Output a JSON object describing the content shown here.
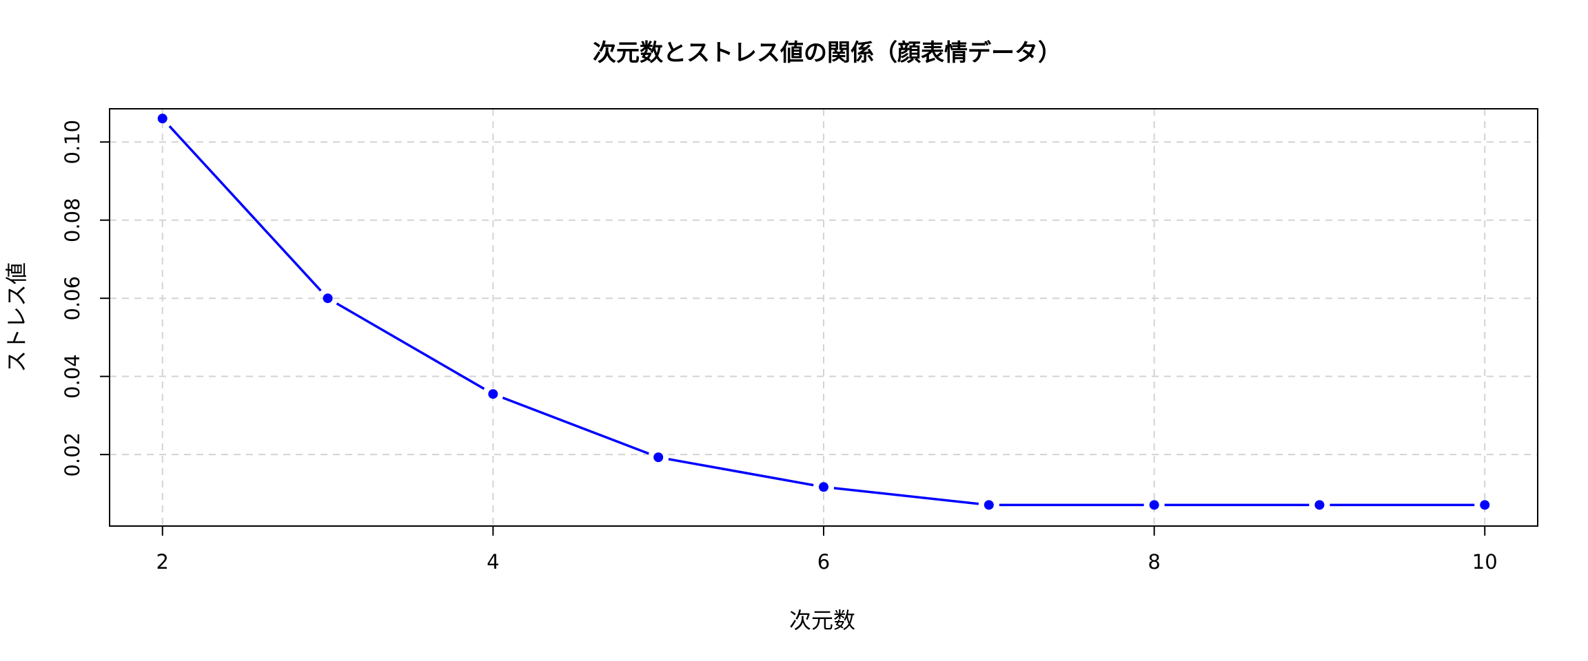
{
  "chart_data": {
    "type": "line",
    "title": "次元数とストレス値の関係（顔表情データ）",
    "xlabel": "次元数",
    "ylabel": "ストレス値",
    "x": [
      2,
      3,
      4,
      5,
      6,
      7,
      8,
      9,
      10
    ],
    "series": [
      {
        "values": [
          0.106,
          0.06,
          0.0355,
          0.0193,
          0.0117,
          0.0071,
          0.0071,
          0.0071,
          0.0071
        ]
      }
    ],
    "xlim": [
      1.68,
      10.32
    ],
    "ylim": [
      0.0017,
      0.1085
    ],
    "xticks": [
      2,
      4,
      6,
      8,
      10
    ],
    "xtick_labels": [
      "2",
      "4",
      "6",
      "8",
      "10"
    ],
    "yticks": [
      0.02,
      0.04,
      0.06,
      0.08,
      0.1
    ],
    "ytick_labels": [
      "0.02",
      "0.04",
      "0.06",
      "0.08",
      "0.10"
    ],
    "grid": true,
    "colors": {
      "series": "#0000ff",
      "grid": "#d3d3d3",
      "frame": "#000000"
    }
  }
}
